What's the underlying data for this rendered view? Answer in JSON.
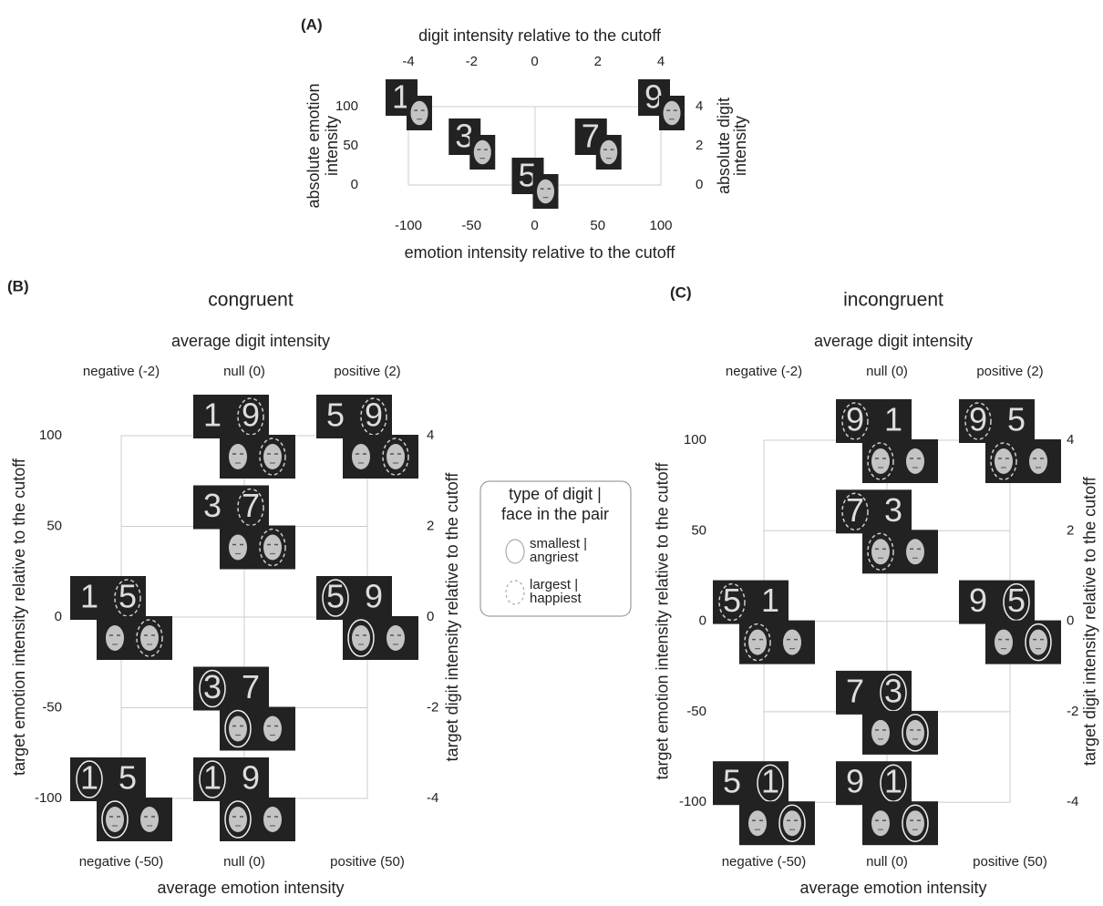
{
  "panel_a": {
    "label": "(A)",
    "top_axis_title": "digit intensity relative to the cutoff",
    "top_ticks": [
      "-4",
      "-2",
      "0",
      "2",
      "4"
    ],
    "left_axis_title": [
      "absolute emotion",
      "intensity"
    ],
    "left_ticks": [
      "100",
      "50",
      "0"
    ],
    "right_axis_title": [
      "absolute digit",
      "intensity"
    ],
    "right_ticks": [
      "4",
      "2",
      "0"
    ],
    "bottom_ticks": [
      "-100",
      "-50",
      "0",
      "50",
      "100"
    ],
    "bottom_axis_title": "emotion intensity relative to the cutoff",
    "digits": [
      "1",
      "3",
      "5",
      "7",
      "9"
    ]
  },
  "panel_b": {
    "label": "(B)",
    "title": "congruent",
    "top_axis_title": "average digit intensity",
    "top_categories": [
      "negative (-2)",
      "null (0)",
      "positive (2)"
    ],
    "left_axis_title": "target emotion intensity relative to the cutoff",
    "left_ticks": [
      "100",
      "50",
      "0",
      "-50",
      "-100"
    ],
    "right_axis_title": "target digit intensity relative to the cutoff",
    "right_ticks": [
      "4",
      "2",
      "0",
      "-2",
      "-4"
    ],
    "bottom_categories": [
      "negative (-50)",
      "null (0)",
      "positive (50)"
    ],
    "bottom_axis_title": "average emotion intensity",
    "pairs": [
      [
        "1",
        "9"
      ],
      [
        "5",
        "9"
      ],
      [
        "3",
        "7"
      ],
      [
        "1",
        "5"
      ],
      [
        "5",
        "9"
      ],
      [
        "3",
        "7"
      ],
      [
        "1",
        "5"
      ],
      [
        "1",
        "9"
      ]
    ]
  },
  "panel_c": {
    "label": "(C)",
    "title": "incongruent",
    "top_axis_title": "average digit intensity",
    "top_categories": [
      "negative (-2)",
      "null (0)",
      "positive (2)"
    ],
    "left_axis_title": "target emotion intensity relative to the cutoff",
    "left_ticks": [
      "100",
      "50",
      "0",
      "-50",
      "-100"
    ],
    "right_axis_title": "target digit intensity relative to the cutoff",
    "right_ticks": [
      "4",
      "2",
      "0",
      "-2",
      "-4"
    ],
    "bottom_categories": [
      "negative (-50)",
      "null (0)",
      "positive (50)"
    ],
    "bottom_axis_title": "average emotion intensity",
    "pairs": [
      [
        "9",
        "1"
      ],
      [
        "9",
        "5"
      ],
      [
        "7",
        "3"
      ],
      [
        "5",
        "1"
      ],
      [
        "9",
        "5"
      ],
      [
        "7",
        "3"
      ],
      [
        "5",
        "1"
      ],
      [
        "9",
        "1"
      ]
    ]
  },
  "legend": {
    "title": [
      "type of digit |",
      "face in the pair"
    ],
    "entries": [
      [
        "smallest |",
        "angriest"
      ],
      [
        "largest |",
        "happiest"
      ]
    ]
  }
}
